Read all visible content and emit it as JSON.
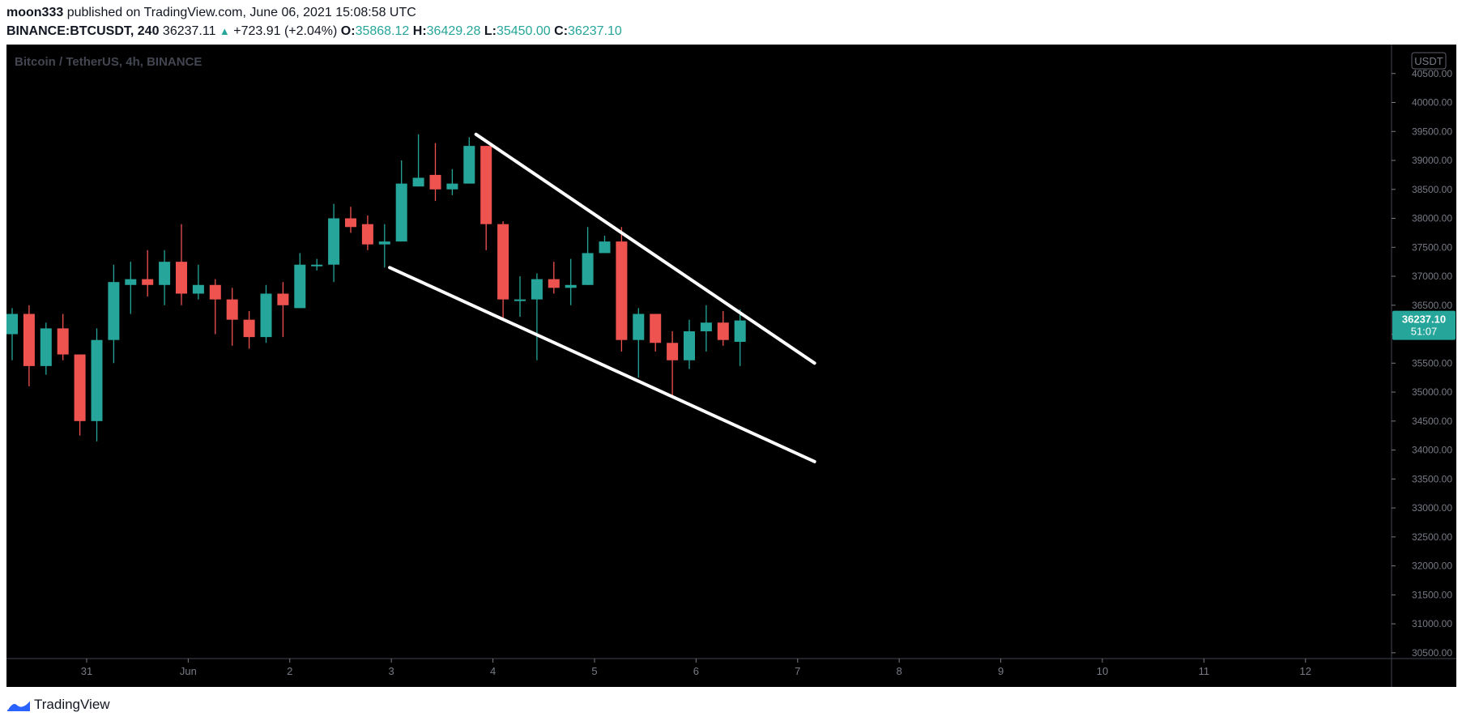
{
  "header": {
    "author": "moon333",
    "published_text": "published on TradingView.com, June 06, 2021 15:08:58 UTC",
    "symbol": "BINANCE:BTCUSDT, 240",
    "last_price": "36237.11",
    "change": "+723.91 (+2.04%)",
    "open_label": "O:",
    "open": "35868.12",
    "high_label": "H:",
    "high": "36429.28",
    "low_label": "L:",
    "low": "35450.00",
    "close_label": "C:",
    "close": "36237.10"
  },
  "chart_title": "Bitcoin / TetherUS, 4h, BINANCE",
  "currency_badge": "USDT",
  "price_tag": {
    "price": "36237.10",
    "countdown": "51:07"
  },
  "footer": {
    "brand": "TradingView",
    "logo_icon": "tradingview-logo-icon"
  },
  "colors": {
    "background": "#000000",
    "up": "#26a69a",
    "down": "#ef5350",
    "trendline": "#ffffff",
    "axis_text": "#787b86"
  },
  "chart_data": {
    "type": "candlestick",
    "title": "Bitcoin / TetherUS, 4h, BINANCE",
    "ylim": [
      30400,
      41000
    ],
    "y_ticks": [
      "30500.00",
      "31000.00",
      "31500.00",
      "32000.00",
      "32500.00",
      "33000.00",
      "33500.00",
      "34000.00",
      "34500.00",
      "35000.00",
      "35500.00",
      "36000.00",
      "36500.00",
      "37000.00",
      "37500.00",
      "38000.00",
      "38500.00",
      "39000.00",
      "39500.00",
      "40000.00",
      "40500.00"
    ],
    "x_ticks": [
      {
        "label": "31",
        "t": 4.4
      },
      {
        "label": "Jun",
        "t": 10.4
      },
      {
        "label": "2",
        "t": 16.4
      },
      {
        "label": "3",
        "t": 22.4
      },
      {
        "label": "4",
        "t": 28.4
      },
      {
        "label": "5",
        "t": 34.4
      },
      {
        "label": "6",
        "t": 40.4
      },
      {
        "label": "7",
        "t": 46.4
      },
      {
        "label": "8",
        "t": 52.4
      },
      {
        "label": "9",
        "t": 58.4
      },
      {
        "label": "10",
        "t": 64.4
      },
      {
        "label": "11",
        "t": 70.4
      },
      {
        "label": "12",
        "t": 76.4
      }
    ],
    "candles": [
      {
        "o": 36000,
        "h": 36450,
        "l": 35550,
        "c": 36350
      },
      {
        "o": 36350,
        "h": 36500,
        "l": 35100,
        "c": 35450
      },
      {
        "o": 35450,
        "h": 36200,
        "l": 35300,
        "c": 36100
      },
      {
        "o": 36100,
        "h": 36350,
        "l": 35550,
        "c": 35650
      },
      {
        "o": 35650,
        "h": 35650,
        "l": 34250,
        "c": 34500
      },
      {
        "o": 34500,
        "h": 36100,
        "l": 34150,
        "c": 35900
      },
      {
        "o": 35900,
        "h": 37200,
        "l": 35500,
        "c": 36900
      },
      {
        "o": 36850,
        "h": 37250,
        "l": 36350,
        "c": 36950
      },
      {
        "o": 36950,
        "h": 37450,
        "l": 36650,
        "c": 36850
      },
      {
        "o": 36850,
        "h": 37450,
        "l": 36500,
        "c": 37250
      },
      {
        "o": 37250,
        "h": 37900,
        "l": 36500,
        "c": 36700
      },
      {
        "o": 36700,
        "h": 37200,
        "l": 36600,
        "c": 36850
      },
      {
        "o": 36850,
        "h": 36950,
        "l": 36000,
        "c": 36600
      },
      {
        "o": 36600,
        "h": 36800,
        "l": 35800,
        "c": 36250
      },
      {
        "o": 36250,
        "h": 36400,
        "l": 35750,
        "c": 35950
      },
      {
        "o": 35950,
        "h": 36850,
        "l": 35850,
        "c": 36700
      },
      {
        "o": 36700,
        "h": 36900,
        "l": 35950,
        "c": 36500
      },
      {
        "o": 36450,
        "h": 37400,
        "l": 36450,
        "c": 37200
      },
      {
        "o": 37200,
        "h": 37300,
        "l": 37100,
        "c": 37200
      },
      {
        "o": 37200,
        "h": 38250,
        "l": 36900,
        "c": 38000
      },
      {
        "o": 38000,
        "h": 38200,
        "l": 37750,
        "c": 37850
      },
      {
        "o": 37900,
        "h": 38050,
        "l": 37450,
        "c": 37550
      },
      {
        "o": 37550,
        "h": 37900,
        "l": 37150,
        "c": 37600
      },
      {
        "o": 37600,
        "h": 39000,
        "l": 37600,
        "c": 38600
      },
      {
        "o": 38550,
        "h": 39450,
        "l": 38550,
        "c": 38700
      },
      {
        "o": 38750,
        "h": 39300,
        "l": 38300,
        "c": 38500
      },
      {
        "o": 38500,
        "h": 38850,
        "l": 38400,
        "c": 38600
      },
      {
        "o": 38600,
        "h": 39400,
        "l": 38600,
        "c": 39250
      },
      {
        "o": 39250,
        "h": 39250,
        "l": 37450,
        "c": 37900
      },
      {
        "o": 37900,
        "h": 37950,
        "l": 36250,
        "c": 36600
      },
      {
        "o": 36600,
        "h": 37000,
        "l": 36300,
        "c": 36600
      },
      {
        "o": 36600,
        "h": 37050,
        "l": 35550,
        "c": 36950
      },
      {
        "o": 36950,
        "h": 37250,
        "l": 36700,
        "c": 36800
      },
      {
        "o": 36800,
        "h": 37300,
        "l": 36500,
        "c": 36850
      },
      {
        "o": 36850,
        "h": 37850,
        "l": 36850,
        "c": 37400
      },
      {
        "o": 37400,
        "h": 37700,
        "l": 37400,
        "c": 37600
      },
      {
        "o": 37600,
        "h": 37850,
        "l": 35700,
        "c": 35900
      },
      {
        "o": 35900,
        "h": 36450,
        "l": 35250,
        "c": 36350
      },
      {
        "o": 36350,
        "h": 36350,
        "l": 35700,
        "c": 35850
      },
      {
        "o": 35850,
        "h": 36050,
        "l": 34900,
        "c": 35550
      },
      {
        "o": 35550,
        "h": 36250,
        "l": 35400,
        "c": 36050
      },
      {
        "o": 36050,
        "h": 36500,
        "l": 35700,
        "c": 36200
      },
      {
        "o": 36200,
        "h": 36400,
        "l": 35800,
        "c": 35900
      },
      {
        "o": 35868.12,
        "h": 36429.28,
        "l": 35450,
        "c": 36237.1
      }
    ],
    "trendlines": [
      {
        "from": {
          "t": 27.4,
          "price": 39450
        },
        "to": {
          "t": 47.4,
          "price": 35500
        }
      },
      {
        "from": {
          "t": 22.3,
          "price": 37150
        },
        "to": {
          "t": 47.4,
          "price": 33800
        }
      }
    ]
  }
}
